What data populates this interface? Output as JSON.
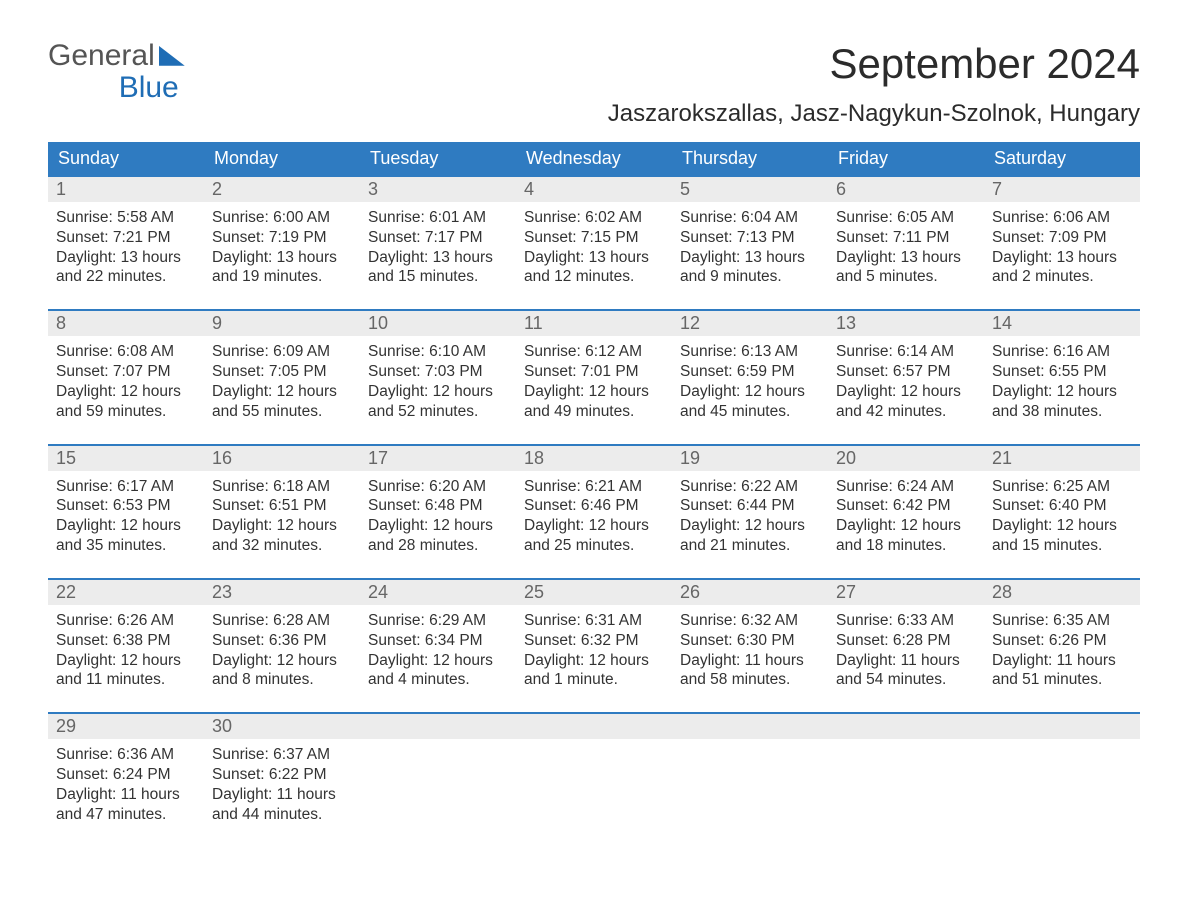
{
  "colors": {
    "header_bg": "#2f7bc1",
    "header_text": "#ffffff",
    "week_border": "#2f7bc1",
    "daynum_bg": "#ececec",
    "daynum_text": "#666666",
    "body_text": "#333333",
    "logo_blue": "#1f6db5",
    "logo_gray": "#555555",
    "page_bg": "#ffffff"
  },
  "logo": {
    "top": "General",
    "bottom": "Blue"
  },
  "title": "September 2024",
  "location": "Jaszarokszallas, Jasz-Nagykun-Szolnok, Hungary",
  "day_headers": [
    "Sunday",
    "Monday",
    "Tuesday",
    "Wednesday",
    "Thursday",
    "Friday",
    "Saturday"
  ],
  "weeks": [
    [
      {
        "n": "1",
        "l1": "Sunrise: 5:58 AM",
        "l2": "Sunset: 7:21 PM",
        "l3": "Daylight: 13 hours",
        "l4": "and 22 minutes."
      },
      {
        "n": "2",
        "l1": "Sunrise: 6:00 AM",
        "l2": "Sunset: 7:19 PM",
        "l3": "Daylight: 13 hours",
        "l4": "and 19 minutes."
      },
      {
        "n": "3",
        "l1": "Sunrise: 6:01 AM",
        "l2": "Sunset: 7:17 PM",
        "l3": "Daylight: 13 hours",
        "l4": "and 15 minutes."
      },
      {
        "n": "4",
        "l1": "Sunrise: 6:02 AM",
        "l2": "Sunset: 7:15 PM",
        "l3": "Daylight: 13 hours",
        "l4": "and 12 minutes."
      },
      {
        "n": "5",
        "l1": "Sunrise: 6:04 AM",
        "l2": "Sunset: 7:13 PM",
        "l3": "Daylight: 13 hours",
        "l4": "and 9 minutes."
      },
      {
        "n": "6",
        "l1": "Sunrise: 6:05 AM",
        "l2": "Sunset: 7:11 PM",
        "l3": "Daylight: 13 hours",
        "l4": "and 5 minutes."
      },
      {
        "n": "7",
        "l1": "Sunrise: 6:06 AM",
        "l2": "Sunset: 7:09 PM",
        "l3": "Daylight: 13 hours",
        "l4": "and 2 minutes."
      }
    ],
    [
      {
        "n": "8",
        "l1": "Sunrise: 6:08 AM",
        "l2": "Sunset: 7:07 PM",
        "l3": "Daylight: 12 hours",
        "l4": "and 59 minutes."
      },
      {
        "n": "9",
        "l1": "Sunrise: 6:09 AM",
        "l2": "Sunset: 7:05 PM",
        "l3": "Daylight: 12 hours",
        "l4": "and 55 minutes."
      },
      {
        "n": "10",
        "l1": "Sunrise: 6:10 AM",
        "l2": "Sunset: 7:03 PM",
        "l3": "Daylight: 12 hours",
        "l4": "and 52 minutes."
      },
      {
        "n": "11",
        "l1": "Sunrise: 6:12 AM",
        "l2": "Sunset: 7:01 PM",
        "l3": "Daylight: 12 hours",
        "l4": "and 49 minutes."
      },
      {
        "n": "12",
        "l1": "Sunrise: 6:13 AM",
        "l2": "Sunset: 6:59 PM",
        "l3": "Daylight: 12 hours",
        "l4": "and 45 minutes."
      },
      {
        "n": "13",
        "l1": "Sunrise: 6:14 AM",
        "l2": "Sunset: 6:57 PM",
        "l3": "Daylight: 12 hours",
        "l4": "and 42 minutes."
      },
      {
        "n": "14",
        "l1": "Sunrise: 6:16 AM",
        "l2": "Sunset: 6:55 PM",
        "l3": "Daylight: 12 hours",
        "l4": "and 38 minutes."
      }
    ],
    [
      {
        "n": "15",
        "l1": "Sunrise: 6:17 AM",
        "l2": "Sunset: 6:53 PM",
        "l3": "Daylight: 12 hours",
        "l4": "and 35 minutes."
      },
      {
        "n": "16",
        "l1": "Sunrise: 6:18 AM",
        "l2": "Sunset: 6:51 PM",
        "l3": "Daylight: 12 hours",
        "l4": "and 32 minutes."
      },
      {
        "n": "17",
        "l1": "Sunrise: 6:20 AM",
        "l2": "Sunset: 6:48 PM",
        "l3": "Daylight: 12 hours",
        "l4": "and 28 minutes."
      },
      {
        "n": "18",
        "l1": "Sunrise: 6:21 AM",
        "l2": "Sunset: 6:46 PM",
        "l3": "Daylight: 12 hours",
        "l4": "and 25 minutes."
      },
      {
        "n": "19",
        "l1": "Sunrise: 6:22 AM",
        "l2": "Sunset: 6:44 PM",
        "l3": "Daylight: 12 hours",
        "l4": "and 21 minutes."
      },
      {
        "n": "20",
        "l1": "Sunrise: 6:24 AM",
        "l2": "Sunset: 6:42 PM",
        "l3": "Daylight: 12 hours",
        "l4": "and 18 minutes."
      },
      {
        "n": "21",
        "l1": "Sunrise: 6:25 AM",
        "l2": "Sunset: 6:40 PM",
        "l3": "Daylight: 12 hours",
        "l4": "and 15 minutes."
      }
    ],
    [
      {
        "n": "22",
        "l1": "Sunrise: 6:26 AM",
        "l2": "Sunset: 6:38 PM",
        "l3": "Daylight: 12 hours",
        "l4": "and 11 minutes."
      },
      {
        "n": "23",
        "l1": "Sunrise: 6:28 AM",
        "l2": "Sunset: 6:36 PM",
        "l3": "Daylight: 12 hours",
        "l4": "and 8 minutes."
      },
      {
        "n": "24",
        "l1": "Sunrise: 6:29 AM",
        "l2": "Sunset: 6:34 PM",
        "l3": "Daylight: 12 hours",
        "l4": "and 4 minutes."
      },
      {
        "n": "25",
        "l1": "Sunrise: 6:31 AM",
        "l2": "Sunset: 6:32 PM",
        "l3": "Daylight: 12 hours",
        "l4": "and 1 minute."
      },
      {
        "n": "26",
        "l1": "Sunrise: 6:32 AM",
        "l2": "Sunset: 6:30 PM",
        "l3": "Daylight: 11 hours",
        "l4": "and 58 minutes."
      },
      {
        "n": "27",
        "l1": "Sunrise: 6:33 AM",
        "l2": "Sunset: 6:28 PM",
        "l3": "Daylight: 11 hours",
        "l4": "and 54 minutes."
      },
      {
        "n": "28",
        "l1": "Sunrise: 6:35 AM",
        "l2": "Sunset: 6:26 PM",
        "l3": "Daylight: 11 hours",
        "l4": "and 51 minutes."
      }
    ],
    [
      {
        "n": "29",
        "l1": "Sunrise: 6:36 AM",
        "l2": "Sunset: 6:24 PM",
        "l3": "Daylight: 11 hours",
        "l4": "and 47 minutes."
      },
      {
        "n": "30",
        "l1": "Sunrise: 6:37 AM",
        "l2": "Sunset: 6:22 PM",
        "l3": "Daylight: 11 hours",
        "l4": "and 44 minutes."
      },
      {
        "n": "",
        "l1": "",
        "l2": "",
        "l3": "",
        "l4": ""
      },
      {
        "n": "",
        "l1": "",
        "l2": "",
        "l3": "",
        "l4": ""
      },
      {
        "n": "",
        "l1": "",
        "l2": "",
        "l3": "",
        "l4": ""
      },
      {
        "n": "",
        "l1": "",
        "l2": "",
        "l3": "",
        "l4": ""
      },
      {
        "n": "",
        "l1": "",
        "l2": "",
        "l3": "",
        "l4": ""
      }
    ]
  ]
}
